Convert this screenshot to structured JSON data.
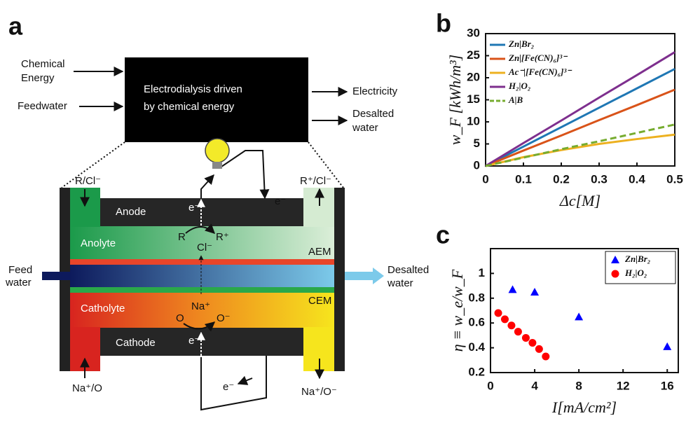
{
  "figure_label": "a",
  "diagram": {
    "inputs": [
      [
        "Chemical",
        "Energy"
      ],
      [
        "Feedwater"
      ]
    ],
    "process": [
      "Electrodialysis driven",
      "by chemical energy"
    ],
    "outputs": [
      [
        "Electricity"
      ],
      [
        "Desalted",
        "water"
      ]
    ],
    "cell": {
      "top_left": "R/Cl⁻",
      "top_right": "R⁺/Cl⁻",
      "anode": "Anode",
      "anolyte": "Anolyte",
      "r": "R",
      "r_plus": "R⁺",
      "cl": "Cl⁻",
      "aem": "AEM",
      "feed": [
        "Feed",
        "water"
      ],
      "desalted": [
        "Desalted",
        "water"
      ],
      "catholyte": "Catholyte",
      "na": "Na⁺",
      "o": "O",
      "o_minus": "O⁻",
      "cem": "CEM",
      "cathode": "Cathode",
      "bottom_left": "Na⁺/O",
      "bottom_right": "Na⁺/O⁻",
      "electron": "e⁻"
    }
  },
  "chart_data": [
    {
      "type": "line",
      "label": "b",
      "xlabel": "Δc[M]",
      "ylabel": "w_F [kWh/m³]",
      "x": [
        0,
        0.1,
        0.2,
        0.3,
        0.4,
        0.5
      ],
      "series": [
        {
          "name": "Zn|Br₂",
          "color": "#1f77b4",
          "values": [
            0,
            4.4,
            8.8,
            13.2,
            17.6,
            22
          ]
        },
        {
          "name": "Zn|[Fe(CN)₆]³⁻",
          "color": "#d95319",
          "values": [
            0,
            3.5,
            6.9,
            10.4,
            13.8,
            17.3
          ]
        },
        {
          "name": "Ac⁻|[Fe(CN)₆]³⁻",
          "color": "#edb120",
          "values": [
            0,
            2.0,
            3.6,
            5.0,
            6.1,
            7.1
          ]
        },
        {
          "name": "H₂|O₂",
          "color": "#7e2f8e",
          "values": [
            0,
            5.2,
            10.3,
            15.5,
            20.6,
            25.8
          ]
        },
        {
          "name": "A|B",
          "color": "#77ac30",
          "linestyle": "dashed",
          "values": [
            0,
            1.9,
            3.8,
            5.6,
            7.5,
            9.4
          ]
        }
      ],
      "xlim": [
        0,
        0.5
      ],
      "xticks": [
        0,
        0.1,
        0.2,
        0.3,
        0.4,
        0.5
      ],
      "ylim": [
        0,
        30
      ],
      "yticks": [
        0,
        5,
        10,
        15,
        20,
        25,
        30
      ],
      "legend": "upper left"
    },
    {
      "type": "scatter",
      "label": "c",
      "xlabel": "I[mA/cm²]",
      "ylabel": "η ≡ w_e/w_F",
      "series": [
        {
          "name": "Zn|Br₂",
          "color": "#0000ff",
          "marker": "triangle",
          "x": [
            2,
            4,
            8,
            16
          ],
          "values": [
            0.87,
            0.85,
            0.65,
            0.41
          ]
        },
        {
          "name": "H₂|O₂",
          "color": "#ff0000",
          "marker": "circle",
          "x": [
            0.7,
            1.3,
            1.9,
            2.5,
            3.2,
            3.8,
            4.4,
            5.0
          ],
          "values": [
            0.68,
            0.63,
            0.58,
            0.53,
            0.48,
            0.44,
            0.39,
            0.33
          ]
        }
      ],
      "xlim": [
        0,
        17
      ],
      "xticks": [
        0,
        4,
        8,
        12,
        16
      ],
      "ylim": [
        0.2,
        1.2
      ],
      "yticks": [
        0.2,
        0.4,
        0.6,
        0.8,
        1
      ],
      "legend": "upper right"
    }
  ]
}
